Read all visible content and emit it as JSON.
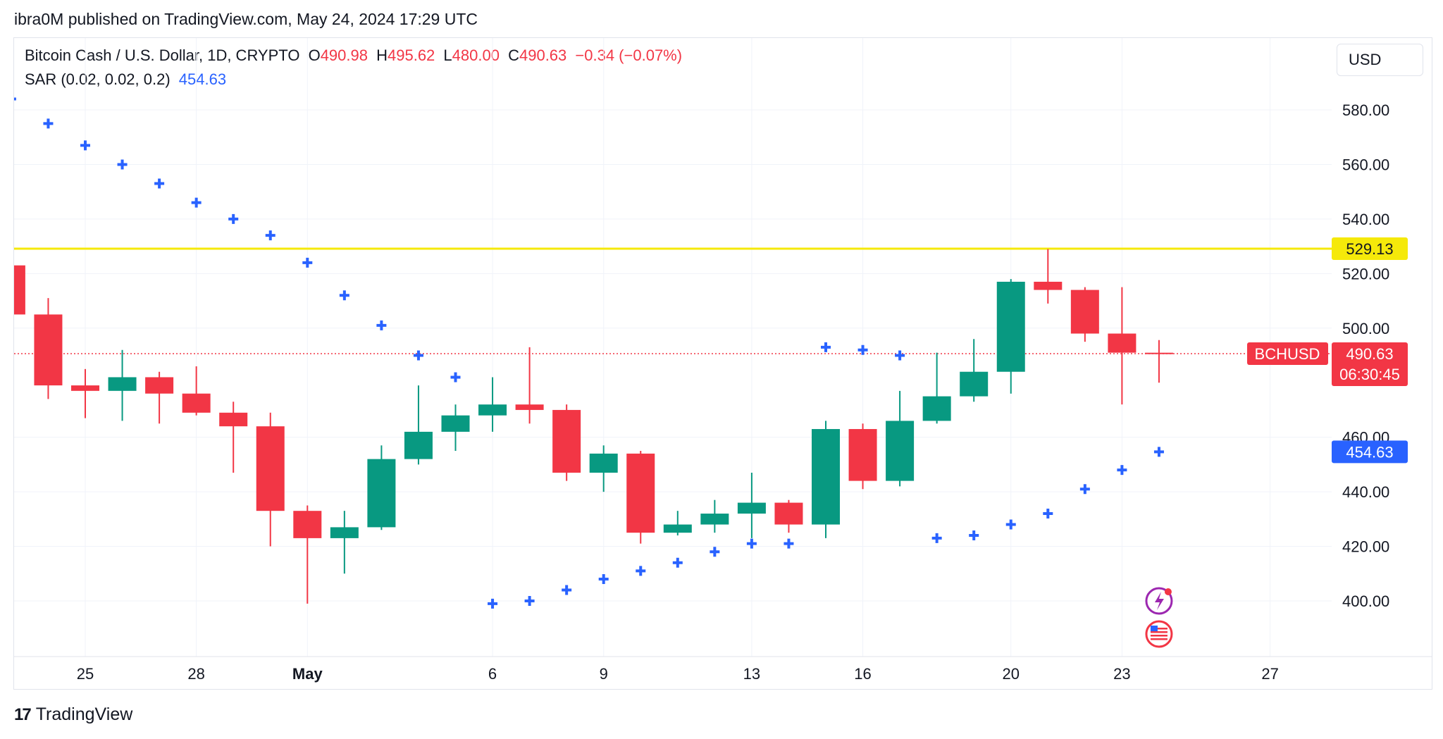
{
  "header": {
    "publisher_line": "ibra0M published on TradingView.com, May 24, 2024 17:29 UTC"
  },
  "legend": {
    "symbol": "Bitcoin Cash / U.S. Dollar, 1D, CRYPTO",
    "o_label": "O",
    "o_value": "490.98",
    "h_label": "H",
    "h_value": "495.62",
    "l_label": "L",
    "l_value": "480.00",
    "c_label": "C",
    "c_value": "490.63",
    "change": "−0.34 (−0.07%)",
    "indicator_name": "SAR (0.02, 0.02, 0.2)",
    "indicator_value": "454.63"
  },
  "currency_button": "USD",
  "footer": {
    "brand": "TradingView",
    "brand_mark": "17"
  },
  "colors": {
    "up": "#089981",
    "down": "#f23645",
    "sar": "#2962ff",
    "resistance": "#f5e90a",
    "last_price_line": "#f23645"
  },
  "icons": [
    "lightning-event-icon",
    "us-flag-event-icon"
  ],
  "chart_data": {
    "type": "candlestick",
    "ylim": [
      380,
      593
    ],
    "y_ticks": [
      "580.00",
      "560.00",
      "540.00",
      "520.00",
      "500.00",
      "460.00",
      "440.00",
      "420.00",
      "400.00"
    ],
    "y_tick_values": [
      580,
      560,
      540,
      520,
      500,
      460,
      440,
      420,
      400
    ],
    "x_ticks": [
      {
        "label": "25",
        "day": "2024-04-25",
        "bold": false
      },
      {
        "label": "28",
        "day": "2024-04-28",
        "bold": false
      },
      {
        "label": "May",
        "day": "2024-05-01",
        "bold": true
      },
      {
        "label": "6",
        "day": "2024-05-06",
        "bold": false
      },
      {
        "label": "9",
        "day": "2024-05-09",
        "bold": false
      },
      {
        "label": "13",
        "day": "2024-05-13",
        "bold": false
      },
      {
        "label": "16",
        "day": "2024-05-16",
        "bold": false
      },
      {
        "label": "20",
        "day": "2024-05-20",
        "bold": false
      },
      {
        "label": "23",
        "day": "2024-05-23",
        "bold": false
      },
      {
        "label": "27",
        "day": "2024-05-27",
        "bold": false
      }
    ],
    "candles": [
      {
        "date": "2024-04-23",
        "o": 523,
        "h": 523,
        "l": 505,
        "c": 505
      },
      {
        "date": "2024-04-24",
        "o": 505,
        "h": 511,
        "l": 474,
        "c": 479
      },
      {
        "date": "2024-04-25",
        "o": 479,
        "h": 485,
        "l": 467,
        "c": 477
      },
      {
        "date": "2024-04-26",
        "o": 477,
        "h": 492,
        "l": 466,
        "c": 482
      },
      {
        "date": "2024-04-27",
        "o": 482,
        "h": 484,
        "l": 465,
        "c": 476
      },
      {
        "date": "2024-04-28",
        "o": 476,
        "h": 486,
        "l": 468,
        "c": 469
      },
      {
        "date": "2024-04-29",
        "o": 469,
        "h": 473,
        "l": 447,
        "c": 464
      },
      {
        "date": "2024-04-30",
        "o": 464,
        "h": 469,
        "l": 420,
        "c": 433
      },
      {
        "date": "2024-05-01",
        "o": 433,
        "h": 435,
        "l": 399,
        "c": 423
      },
      {
        "date": "2024-05-02",
        "o": 423,
        "h": 433,
        "l": 410,
        "c": 427
      },
      {
        "date": "2024-05-03",
        "o": 427,
        "h": 457,
        "l": 426,
        "c": 452
      },
      {
        "date": "2024-05-04",
        "o": 452,
        "h": 479,
        "l": 450,
        "c": 462
      },
      {
        "date": "2024-05-05",
        "o": 462,
        "h": 472,
        "l": 455,
        "c": 468
      },
      {
        "date": "2024-05-06",
        "o": 468,
        "h": 482,
        "l": 462,
        "c": 472
      },
      {
        "date": "2024-05-07",
        "o": 472,
        "h": 493,
        "l": 465,
        "c": 470
      },
      {
        "date": "2024-05-08",
        "o": 470,
        "h": 472,
        "l": 444,
        "c": 447
      },
      {
        "date": "2024-05-09",
        "o": 447,
        "h": 457,
        "l": 440,
        "c": 454
      },
      {
        "date": "2024-05-10",
        "o": 454,
        "h": 455,
        "l": 421,
        "c": 425
      },
      {
        "date": "2024-05-11",
        "o": 425,
        "h": 433,
        "l": 424,
        "c": 428
      },
      {
        "date": "2024-05-12",
        "o": 428,
        "h": 437,
        "l": 425,
        "c": 432
      },
      {
        "date": "2024-05-13",
        "o": 432,
        "h": 447,
        "l": 423,
        "c": 436
      },
      {
        "date": "2024-05-14",
        "o": 436,
        "h": 437,
        "l": 425,
        "c": 428
      },
      {
        "date": "2024-05-15",
        "o": 428,
        "h": 466,
        "l": 423,
        "c": 463
      },
      {
        "date": "2024-05-16",
        "o": 463,
        "h": 465,
        "l": 441,
        "c": 444
      },
      {
        "date": "2024-05-17",
        "o": 444,
        "h": 477,
        "l": 442,
        "c": 466
      },
      {
        "date": "2024-05-18",
        "o": 466,
        "h": 491,
        "l": 465,
        "c": 475
      },
      {
        "date": "2024-05-19",
        "o": 475,
        "h": 496,
        "l": 473,
        "c": 484
      },
      {
        "date": "2024-05-20",
        "o": 484,
        "h": 518,
        "l": 476,
        "c": 517
      },
      {
        "date": "2024-05-21",
        "o": 517,
        "h": 529,
        "l": 509,
        "c": 514
      },
      {
        "date": "2024-05-22",
        "o": 514,
        "h": 515,
        "l": 495,
        "c": 498
      },
      {
        "date": "2024-05-23",
        "o": 498,
        "h": 515,
        "l": 472,
        "c": 491
      },
      {
        "date": "2024-05-24",
        "o": 490.98,
        "h": 495.62,
        "l": 480.0,
        "c": 490.63
      }
    ],
    "sar": [
      {
        "date": "2024-04-23",
        "v": 584
      },
      {
        "date": "2024-04-24",
        "v": 575
      },
      {
        "date": "2024-04-25",
        "v": 567
      },
      {
        "date": "2024-04-26",
        "v": 560
      },
      {
        "date": "2024-04-27",
        "v": 553
      },
      {
        "date": "2024-04-28",
        "v": 546
      },
      {
        "date": "2024-04-29",
        "v": 540
      },
      {
        "date": "2024-04-30",
        "v": 534
      },
      {
        "date": "2024-05-01",
        "v": 524
      },
      {
        "date": "2024-05-02",
        "v": 512
      },
      {
        "date": "2024-05-03",
        "v": 501
      },
      {
        "date": "2024-05-04",
        "v": 490
      },
      {
        "date": "2024-05-05",
        "v": 482
      },
      {
        "date": "2024-05-06",
        "v": 399
      },
      {
        "date": "2024-05-07",
        "v": 400
      },
      {
        "date": "2024-05-08",
        "v": 404
      },
      {
        "date": "2024-05-09",
        "v": 408
      },
      {
        "date": "2024-05-10",
        "v": 411
      },
      {
        "date": "2024-05-11",
        "v": 414
      },
      {
        "date": "2024-05-12",
        "v": 418
      },
      {
        "date": "2024-05-13",
        "v": 421
      },
      {
        "date": "2024-05-14",
        "v": 421
      },
      {
        "date": "2024-05-15",
        "v": 493
      },
      {
        "date": "2024-05-16",
        "v": 492
      },
      {
        "date": "2024-05-17",
        "v": 490
      },
      {
        "date": "2024-05-18",
        "v": 423
      },
      {
        "date": "2024-05-19",
        "v": 424
      },
      {
        "date": "2024-05-20",
        "v": 428
      },
      {
        "date": "2024-05-21",
        "v": 432
      },
      {
        "date": "2024-05-22",
        "v": 441
      },
      {
        "date": "2024-05-23",
        "v": 448
      },
      {
        "date": "2024-05-24",
        "v": 454.63
      }
    ],
    "resistance": {
      "value": 529.13,
      "label": "529.13"
    },
    "last_price": {
      "value": 490.63,
      "symbol_label": "BCHUSD",
      "price_label": "490.63",
      "countdown": "06:30:45"
    },
    "sar_label": {
      "value": 454.63,
      "label": "454.63"
    }
  }
}
